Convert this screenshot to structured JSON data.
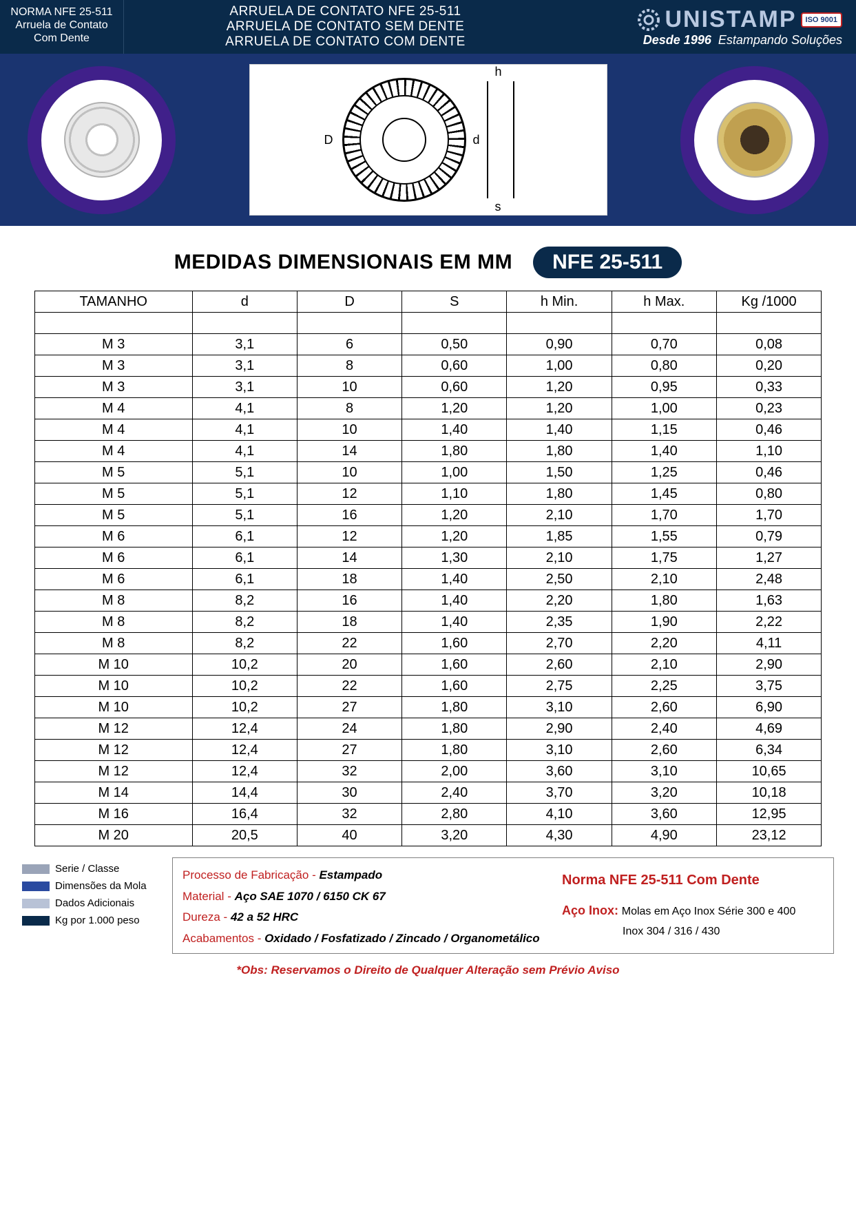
{
  "colors": {
    "header_bg": "#0a2a4a",
    "strip_bg": "#1a3470",
    "circle_border": "#40208a",
    "badge_bg": "#0a2a4a",
    "red": "#c02020",
    "text": "#000000",
    "white": "#ffffff",
    "legend_swatches": [
      "#9aa4b8",
      "#2a4aa0",
      "#b8c2d6",
      "#0a2a4a"
    ]
  },
  "header": {
    "left_line1": "NORMA NFE 25-511",
    "left_line2": "Arruela de Contato",
    "left_line3": "Com Dente",
    "mid_line1": "ARRUELA DE CONTATO NFE 25-511",
    "mid_line2": "ARRUELA DE CONTATO SEM DENTE",
    "mid_line3": "ARRUELA DE CONTATO COM DENTE",
    "brand_name": "UNISTAMP",
    "brand_tagline_prefix": "Desde 1996",
    "brand_tagline_rest": "Estampando Soluções",
    "iso_label": "ISO 9001"
  },
  "tech_labels": {
    "D": "D",
    "d": "d",
    "h": "h",
    "s": "s"
  },
  "title": {
    "text": "MEDIDAS DIMENSIONAIS EM MM",
    "badge": "NFE 25-511"
  },
  "table": {
    "columns": [
      "TAMANHO",
      "d",
      "D",
      "S",
      "h Min.",
      "h Max.",
      "Kg /1000"
    ],
    "column_widths_pct": [
      20,
      13.3,
      13.3,
      13.3,
      13.3,
      13.3,
      13.3
    ],
    "rows": [
      [
        "M 3",
        "3,1",
        "6",
        "0,50",
        "0,90",
        "0,70",
        "0,08"
      ],
      [
        "M 3",
        "3,1",
        "8",
        "0,60",
        "1,00",
        "0,80",
        "0,20"
      ],
      [
        "M 3",
        "3,1",
        "10",
        "0,60",
        "1,20",
        "0,95",
        "0,33"
      ],
      [
        "M 4",
        "4,1",
        "8",
        "1,20",
        "1,20",
        "1,00",
        "0,23"
      ],
      [
        "M 4",
        "4,1",
        "10",
        "1,40",
        "1,40",
        "1,15",
        "0,46"
      ],
      [
        "M 4",
        "4,1",
        "14",
        "1,80",
        "1,80",
        "1,40",
        "1,10"
      ],
      [
        "M 5",
        "5,1",
        "10",
        "1,00",
        "1,50",
        "1,25",
        "0,46"
      ],
      [
        "M 5",
        "5,1",
        "12",
        "1,10",
        "1,80",
        "1,45",
        "0,80"
      ],
      [
        "M 5",
        "5,1",
        "16",
        "1,20",
        "2,10",
        "1,70",
        "1,70"
      ],
      [
        "M 6",
        "6,1",
        "12",
        "1,20",
        "1,85",
        "1,55",
        "0,79"
      ],
      [
        "M 6",
        "6,1",
        "14",
        "1,30",
        "2,10",
        "1,75",
        "1,27"
      ],
      [
        "M 6",
        "6,1",
        "18",
        "1,40",
        "2,50",
        "2,10",
        "2,48"
      ],
      [
        "M 8",
        "8,2",
        "16",
        "1,40",
        "2,20",
        "1,80",
        "1,63"
      ],
      [
        "M 8",
        "8,2",
        "18",
        "1,40",
        "2,35",
        "1,90",
        "2,22"
      ],
      [
        "M 8",
        "8,2",
        "22",
        "1,60",
        "2,70",
        "2,20",
        "4,11"
      ],
      [
        "M 10",
        "10,2",
        "20",
        "1,60",
        "2,60",
        "2,10",
        "2,90"
      ],
      [
        "M 10",
        "10,2",
        "22",
        "1,60",
        "2,75",
        "2,25",
        "3,75"
      ],
      [
        "M 10",
        "10,2",
        "27",
        "1,80",
        "3,10",
        "2,60",
        "6,90"
      ],
      [
        "M 12",
        "12,4",
        "24",
        "1,80",
        "2,90",
        "2,40",
        "4,69"
      ],
      [
        "M 12",
        "12,4",
        "27",
        "1,80",
        "3,10",
        "2,60",
        "6,34"
      ],
      [
        "M 12",
        "12,4",
        "32",
        "2,00",
        "3,60",
        "3,10",
        "10,65"
      ],
      [
        "M 14",
        "14,4",
        "30",
        "2,40",
        "3,70",
        "3,20",
        "10,18"
      ],
      [
        "M 16",
        "16,4",
        "32",
        "2,80",
        "4,10",
        "3,60",
        "12,95"
      ],
      [
        "M 20",
        "20,5",
        "40",
        "3,20",
        "4,30",
        "4,90",
        "23,12"
      ]
    ]
  },
  "legend": {
    "items": [
      {
        "color": "#9aa4b8",
        "label": "Serie / Classe"
      },
      {
        "color": "#2a4aa0",
        "label": "Dimensões da Mola"
      },
      {
        "color": "#b8c2d6",
        "label": "Dados Adicionais"
      },
      {
        "color": "#0a2a4a",
        "label": "Kg por 1.000 peso"
      }
    ]
  },
  "specs": {
    "process_lbl": "Processo de Fabricação",
    "process_val": "Estampado",
    "material_lbl": "Material",
    "material_val": "Aço SAE 1070 / 6150 CK 67",
    "hardness_lbl": "Dureza",
    "hardness_val": "42 a 52 HRC",
    "finish_lbl": "Acabamentos",
    "finish_val": "Oxidado / Fosfatizado / Zincado / Organometálico",
    "norma_title": "Norma NFE 25-511 Com Dente",
    "aco_inox_lbl": "Aço Inox:",
    "aco_inox_line1": "Molas em Aço Inox Série 300 e 400",
    "aco_inox_line2": "Inox 304 / 316 / 430"
  },
  "obs": "*Obs: Reservamos o Direito de Qualquer Alteração sem Prévio Aviso"
}
